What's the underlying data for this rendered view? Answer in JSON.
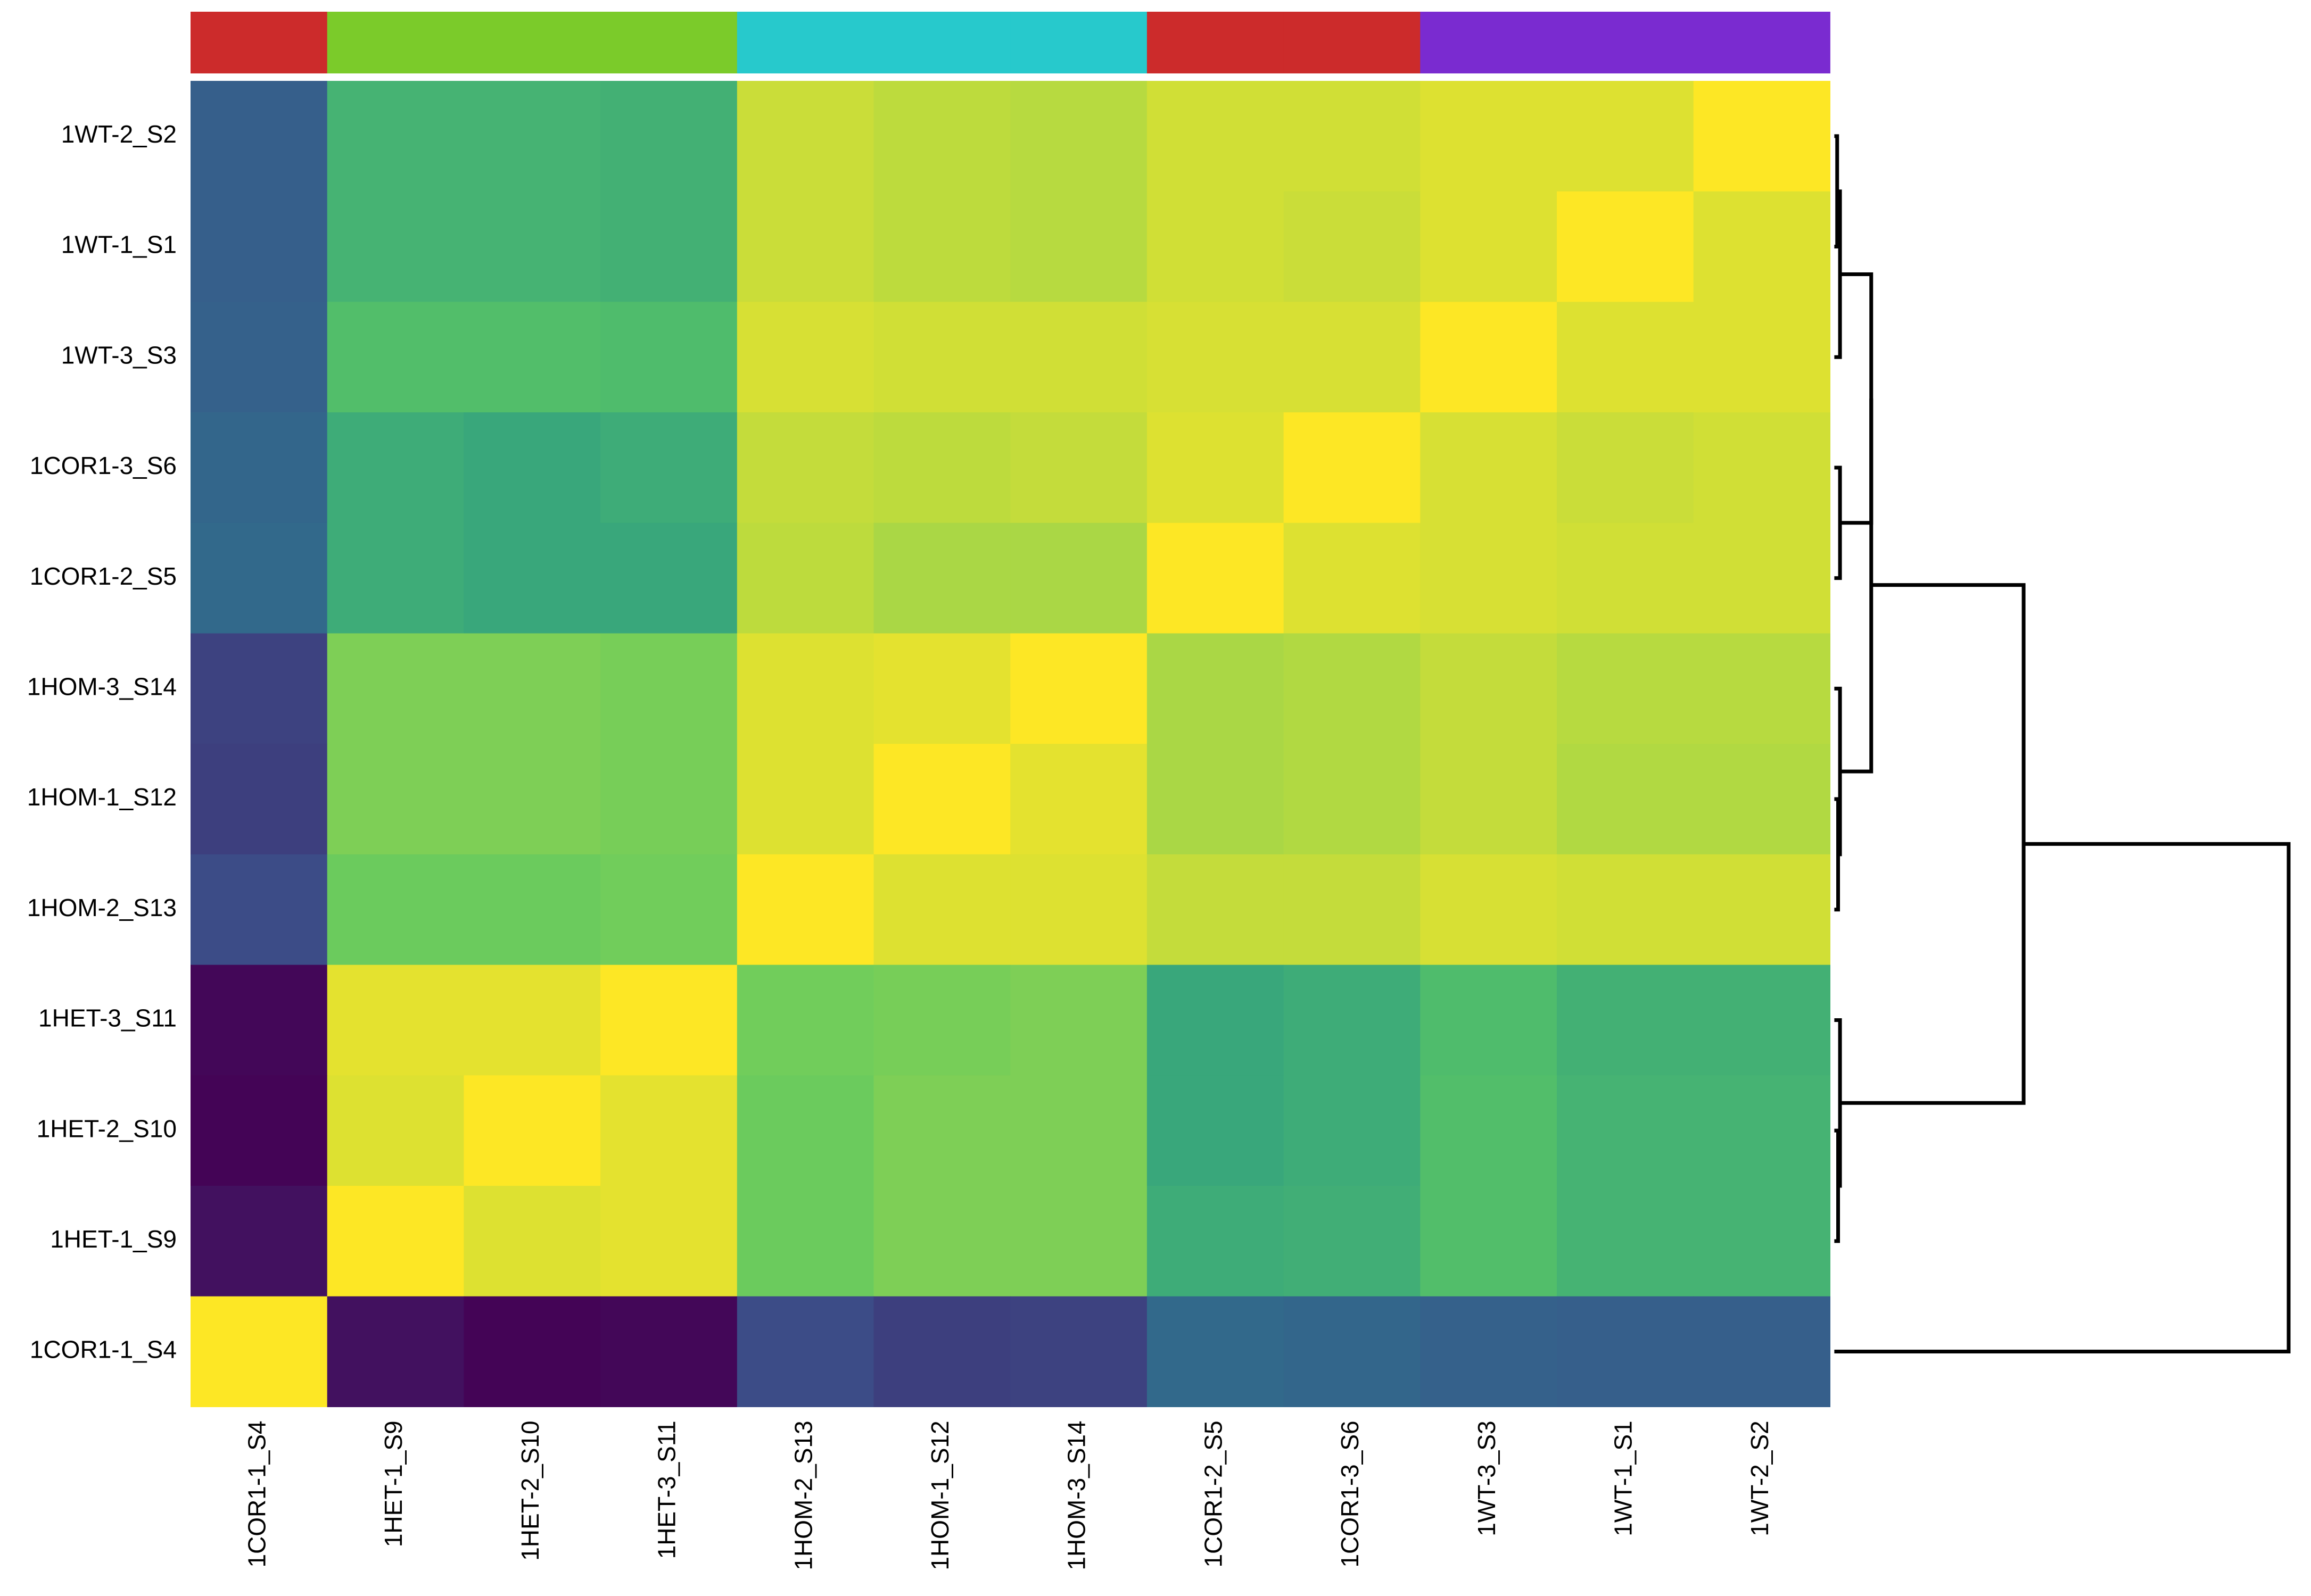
{
  "chart_data": {
    "type": "heatmap",
    "title": "",
    "xlabel": "",
    "ylabel": "",
    "legend": "none",
    "grid": false,
    "colormap": "viridis",
    "row_labels": [
      "1WT-2_S2",
      "1WT-1_S1",
      "1WT-3_S3",
      "1COR1-3_S6",
      "1COR1-2_S5",
      "1HOM-3_S14",
      "1HOM-1_S12",
      "1HOM-2_S13",
      "1HET-3_S11",
      "1HET-2_S10",
      "1HET-1_S9",
      "1COR1-1_S4"
    ],
    "col_labels": [
      "1COR1-1_S4",
      "1HET-1_S9",
      "1HET-2_S10",
      "1HET-3_S11",
      "1HOM-2_S13",
      "1HOM-1_S12",
      "1HOM-3_S14",
      "1COR1-2_S5",
      "1COR1-3_S6",
      "1WT-3_S3",
      "1WT-1_S1",
      "1WT-2_S2"
    ],
    "values": [
      [
        0.3,
        0.65,
        0.65,
        0.64,
        0.92,
        0.9,
        0.89,
        0.93,
        0.93,
        0.95,
        0.95,
        1.0
      ],
      [
        0.3,
        0.65,
        0.65,
        0.64,
        0.92,
        0.9,
        0.89,
        0.93,
        0.92,
        0.95,
        1.0,
        0.95
      ],
      [
        0.31,
        0.7,
        0.7,
        0.69,
        0.94,
        0.93,
        0.93,
        0.94,
        0.94,
        1.0,
        0.95,
        0.95
      ],
      [
        0.33,
        0.62,
        0.6,
        0.62,
        0.91,
        0.9,
        0.91,
        0.95,
        1.0,
        0.94,
        0.92,
        0.93
      ],
      [
        0.34,
        0.62,
        0.6,
        0.6,
        0.9,
        0.87,
        0.87,
        1.0,
        0.95,
        0.94,
        0.93,
        0.93
      ],
      [
        0.2,
        0.8,
        0.8,
        0.79,
        0.95,
        0.96,
        1.0,
        0.87,
        0.88,
        0.91,
        0.89,
        0.89
      ],
      [
        0.19,
        0.8,
        0.8,
        0.79,
        0.95,
        1.0,
        0.96,
        0.87,
        0.88,
        0.91,
        0.88,
        0.88
      ],
      [
        0.23,
        0.77,
        0.77,
        0.78,
        1.0,
        0.95,
        0.95,
        0.91,
        0.91,
        0.94,
        0.93,
        0.93
      ],
      [
        0.02,
        0.96,
        0.96,
        1.0,
        0.78,
        0.79,
        0.8,
        0.6,
        0.62,
        0.69,
        0.64,
        0.64
      ],
      [
        0.01,
        0.95,
        1.0,
        0.96,
        0.77,
        0.8,
        0.8,
        0.6,
        0.62,
        0.7,
        0.65,
        0.65
      ],
      [
        0.05,
        1.0,
        0.95,
        0.96,
        0.77,
        0.8,
        0.8,
        0.62,
        0.63,
        0.7,
        0.65,
        0.65
      ],
      [
        1.0,
        0.05,
        0.01,
        0.02,
        0.23,
        0.19,
        0.2,
        0.34,
        0.33,
        0.31,
        0.3,
        0.3
      ]
    ],
    "column_annotation": {
      "colors": [
        "#cc2b2b",
        "#7bcb2a",
        "#7bcb2a",
        "#7bcb2a",
        "#27c9cc",
        "#27c9cc",
        "#27c9cc",
        "#cc2b2b",
        "#cc2b2b",
        "#7a2bd0",
        "#7a2bd0",
        "#7a2bd0"
      ]
    },
    "row_dendrogram": {
      "side": "right",
      "merges": [
        {
          "a": "r0",
          "b": "r1",
          "h": 0.3
        },
        {
          "a": "r6",
          "b": "r7",
          "h": 0.4
        },
        {
          "a": "r9",
          "b": "r10",
          "h": 0.4
        },
        {
          "a": "r3",
          "b": "r4",
          "h": 0.6
        },
        {
          "a": "r8",
          "b": "m2",
          "h": 0.6
        },
        {
          "a": "r2",
          "b": "m0",
          "h": 0.6
        },
        {
          "a": "r5",
          "b": "m1",
          "h": 0.6
        },
        {
          "a": "m5",
          "b": "m3",
          "h": 3.9
        },
        {
          "a": "m7",
          "b": "m6",
          "h": 3.9
        },
        {
          "a": "m8",
          "b": "m4",
          "h": 20.0
        },
        {
          "a": "r11",
          "b": "m9",
          "h": 48.0
        }
      ]
    }
  }
}
